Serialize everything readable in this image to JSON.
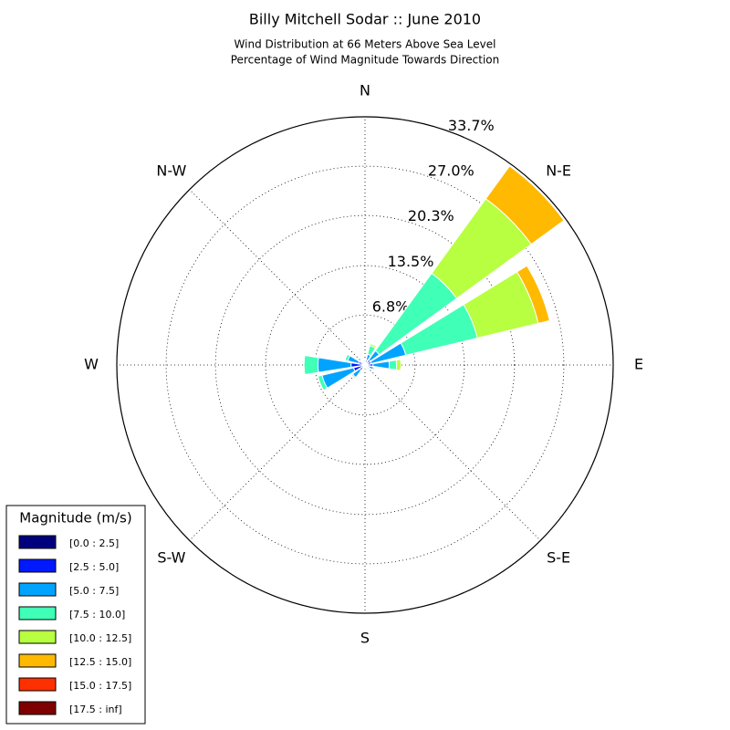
{
  "chart_data": {
    "type": "windrose",
    "title": "Billy Mitchell Sodar :: June 2010",
    "subtitle": [
      "Wind Distribution at 66 Meters Above Sea Level",
      "Percentage of Wind Magnitude Towards Direction"
    ],
    "categories": [
      "N",
      null,
      "N-E",
      null,
      "E",
      null,
      "S-E",
      null,
      "S",
      null,
      "S-W",
      null,
      "W",
      null,
      "N-W",
      null
    ],
    "rlim": [
      0,
      33.7
    ],
    "rticks": [
      {
        "value": 6.8,
        "label": "6.8%"
      },
      {
        "value": 13.5,
        "label": "13.5%"
      },
      {
        "value": 20.3,
        "label": "20.3%"
      },
      {
        "value": 27.0,
        "label": "27.0%"
      },
      {
        "value": 33.7,
        "label": "33.7%"
      }
    ],
    "grid": true,
    "legend_title": "Magnitude (m/s)",
    "legend_position": "lower left",
    "series": [
      {
        "name": "[0.0 : 2.5]",
        "color": "#00007f",
        "values": [
          0.2,
          0.2,
          0.3,
          0.3,
          0.3,
          0.2,
          0.2,
          0.2,
          0.2,
          0.2,
          0.3,
          0.4,
          0.4,
          0.3,
          0.2,
          0.2
        ]
      },
      {
        "name": "[2.5 : 5.0]",
        "color": "#0019ff",
        "values": [
          0.3,
          0.5,
          0.6,
          0.6,
          0.8,
          0.4,
          0.3,
          0.2,
          0.2,
          0.3,
          0.6,
          1.2,
          1.5,
          0.6,
          0.2,
          0.2
        ]
      },
      {
        "name": "[5.0 : 7.5]",
        "color": "#00a4ff",
        "values": [
          0.2,
          0.8,
          1.5,
          4.8,
          2.2,
          0.6,
          0.2,
          0.1,
          0.1,
          0.1,
          1.2,
          4.4,
          4.5,
          1.5,
          0.2,
          0.1
        ]
      },
      {
        "name": "[7.5 : 10.0]",
        "color": "#40ffb7",
        "values": [
          0.1,
          1.2,
          13.0,
          10.0,
          1.0,
          0.2,
          0,
          0,
          0,
          0,
          0.2,
          0.6,
          1.9,
          0.4,
          0,
          0
        ]
      },
      {
        "name": "[10.0 : 12.5]",
        "color": "#b7ff40",
        "values": [
          0,
          0.3,
          12.5,
          8.5,
          0.6,
          0,
          0,
          0,
          0,
          0,
          0,
          0,
          0,
          0,
          0,
          0
        ]
      },
      {
        "name": "[12.5 : 15.0]",
        "color": "#ffb900",
        "values": [
          0,
          0,
          5.5,
          1.6,
          0,
          0,
          0,
          0,
          0,
          0,
          0,
          0,
          0,
          0,
          0,
          0
        ]
      },
      {
        "name": "[15.0 : 17.5]",
        "color": "#ff3000",
        "values": [
          0,
          0,
          0,
          0,
          0,
          0,
          0,
          0,
          0,
          0,
          0,
          0,
          0,
          0,
          0,
          0
        ]
      },
      {
        "name": "[17.5 : inf]",
        "color": "#7f0000",
        "values": [
          0,
          0,
          0,
          0,
          0,
          0,
          0,
          0,
          0,
          0,
          0,
          0,
          0,
          0,
          0,
          0
        ]
      }
    ]
  }
}
